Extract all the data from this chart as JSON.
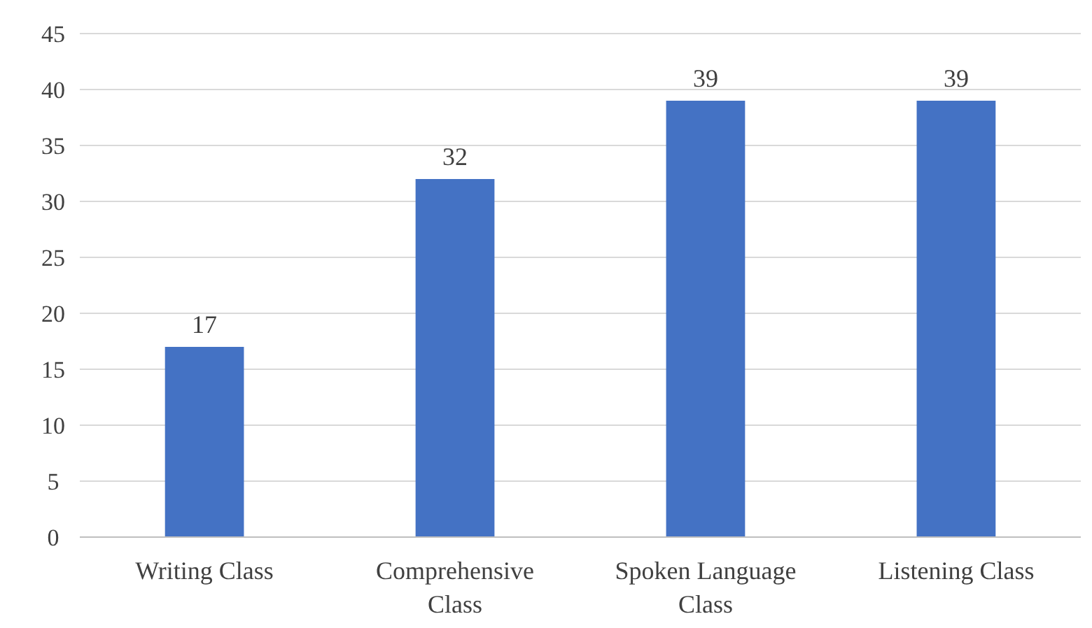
{
  "chart_data": {
    "type": "bar",
    "categories": [
      "Writing Class",
      "Comprehensive Class",
      "Spoken Language Class",
      "Listening Class"
    ],
    "values": [
      17,
      32,
      39,
      39
    ],
    "color": "#4472c4",
    "ylim": [
      0,
      45
    ],
    "yticks": [
      0,
      5,
      10,
      15,
      20,
      25,
      30,
      35,
      40,
      45
    ],
    "grid": "y",
    "data_labels": true
  }
}
